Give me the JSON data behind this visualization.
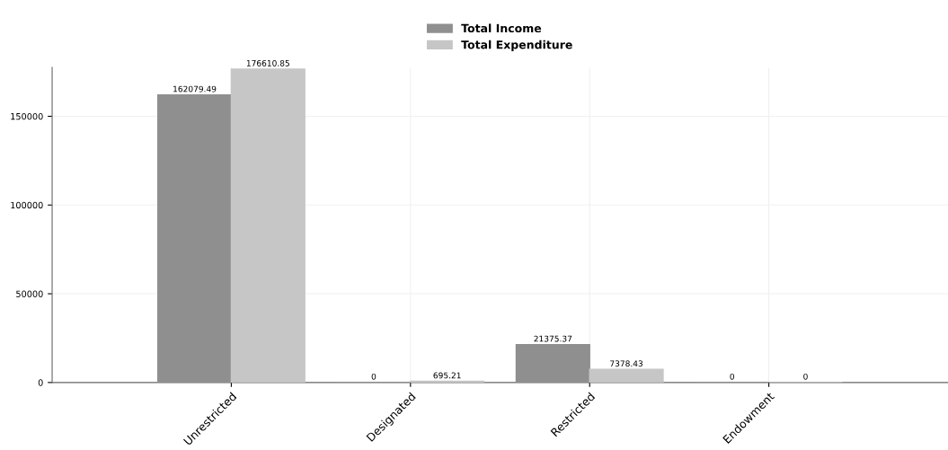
{
  "chart_data": {
    "type": "bar",
    "categories": [
      "Unrestricted",
      "Designated",
      "Restricted",
      "Endowment"
    ],
    "series": [
      {
        "name": "Total Income",
        "color": "#8f8f8f",
        "values": [
          162079.49,
          0,
          21375.37,
          0
        ],
        "value_labels": [
          "162079.49",
          "0",
          "21375.37",
          "0"
        ]
      },
      {
        "name": "Total Expenditure",
        "color": "#c6c6c6",
        "values": [
          176610.85,
          695.21,
          7378.43,
          0
        ],
        "value_labels": [
          "176610.85",
          "695.21",
          "7378.43",
          "0"
        ]
      }
    ],
    "ylim": [
      0,
      177500
    ],
    "yticks": [
      0,
      50000,
      100000,
      150000
    ],
    "grid": true,
    "legend": "top"
  }
}
